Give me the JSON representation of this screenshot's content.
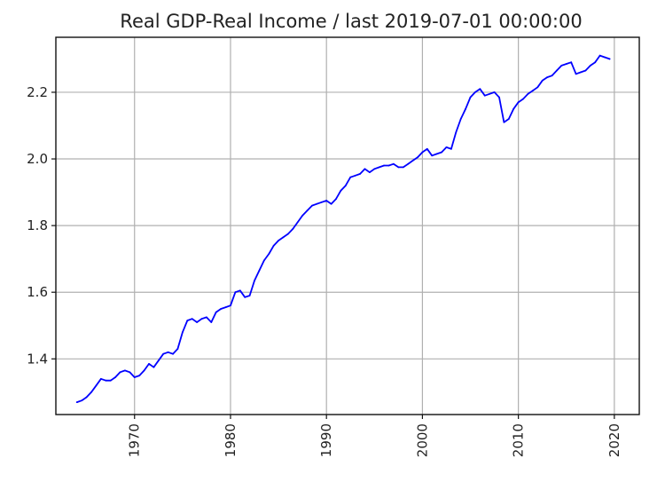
{
  "chart_data": {
    "type": "line",
    "title": "Real GDP-Real Income / last 2019-07-01 00:00:00",
    "xlabel": "",
    "ylabel": "",
    "xlim": [
      1961.8,
      2022.6
    ],
    "ylim": [
      1.233,
      2.365
    ],
    "x_ticks": [
      1970,
      1980,
      1990,
      2000,
      2010,
      2020
    ],
    "x_tick_labels": [
      "1970",
      "1980",
      "1990",
      "2000",
      "2010",
      "2020"
    ],
    "y_ticks": [
      1.4,
      1.6,
      1.8,
      2.0,
      2.2
    ],
    "y_tick_labels": [
      "1.4",
      "1.6",
      "1.8",
      "2.0",
      "2.2"
    ],
    "grid": true,
    "legend": "none",
    "series": [
      {
        "color": "#0000ff",
        "x": [
          1964.0,
          1964.5,
          1965.0,
          1965.5,
          1966.0,
          1966.5,
          1967.0,
          1967.5,
          1968.0,
          1968.5,
          1969.0,
          1969.5,
          1970.0,
          1970.5,
          1971.0,
          1971.5,
          1972.0,
          1972.5,
          1973.0,
          1973.5,
          1974.0,
          1974.5,
          1975.0,
          1975.5,
          1976.0,
          1976.5,
          1977.0,
          1977.5,
          1978.0,
          1978.5,
          1979.0,
          1979.5,
          1980.0,
          1980.5,
          1981.0,
          1981.5,
          1982.0,
          1982.5,
          1983.0,
          1983.5,
          1984.0,
          1984.5,
          1985.0,
          1985.5,
          1986.0,
          1986.5,
          1987.0,
          1987.5,
          1988.0,
          1988.5,
          1989.0,
          1989.5,
          1990.0,
          1990.5,
          1991.0,
          1991.5,
          1992.0,
          1992.5,
          1993.0,
          1993.5,
          1994.0,
          1994.5,
          1995.0,
          1995.5,
          1996.0,
          1996.5,
          1997.0,
          1997.5,
          1998.0,
          1998.5,
          1999.0,
          1999.5,
          2000.0,
          2000.5,
          2001.0,
          2001.5,
          2002.0,
          2002.5,
          2003.0,
          2003.5,
          2004.0,
          2004.5,
          2005.0,
          2005.5,
          2006.0,
          2006.5,
          2007.0,
          2007.5,
          2008.0,
          2008.5,
          2009.0,
          2009.5,
          2010.0,
          2010.5,
          2011.0,
          2011.5,
          2012.0,
          2012.5,
          2013.0,
          2013.5,
          2014.0,
          2014.5,
          2015.0,
          2015.5,
          2016.0,
          2016.5,
          2017.0,
          2017.5,
          2018.0,
          2018.5,
          2019.0,
          2019.5
        ],
        "values": [
          1.27,
          1.275,
          1.285,
          1.3,
          1.32,
          1.34,
          1.335,
          1.335,
          1.345,
          1.36,
          1.365,
          1.36,
          1.345,
          1.35,
          1.365,
          1.385,
          1.375,
          1.395,
          1.415,
          1.42,
          1.415,
          1.43,
          1.48,
          1.515,
          1.52,
          1.51,
          1.52,
          1.525,
          1.51,
          1.54,
          1.55,
          1.555,
          1.56,
          1.6,
          1.605,
          1.585,
          1.59,
          1.635,
          1.665,
          1.695,
          1.715,
          1.74,
          1.755,
          1.765,
          1.775,
          1.79,
          1.81,
          1.83,
          1.845,
          1.86,
          1.865,
          1.87,
          1.875,
          1.865,
          1.88,
          1.905,
          1.92,
          1.945,
          1.95,
          1.955,
          1.97,
          1.96,
          1.97,
          1.975,
          1.98,
          1.98,
          1.985,
          1.975,
          1.975,
          1.985,
          1.995,
          2.005,
          2.02,
          2.03,
          2.01,
          2.015,
          2.02,
          2.035,
          2.03,
          2.08,
          2.12,
          2.15,
          2.185,
          2.2,
          2.21,
          2.19,
          2.195,
          2.2,
          2.185,
          2.11,
          2.12,
          2.15,
          2.17,
          2.18,
          2.195,
          2.205,
          2.215,
          2.235,
          2.245,
          2.25,
          2.265,
          2.28,
          2.285,
          2.29,
          2.255,
          2.26,
          2.265,
          2.28,
          2.29,
          2.31,
          2.305,
          2.3
        ]
      }
    ]
  }
}
